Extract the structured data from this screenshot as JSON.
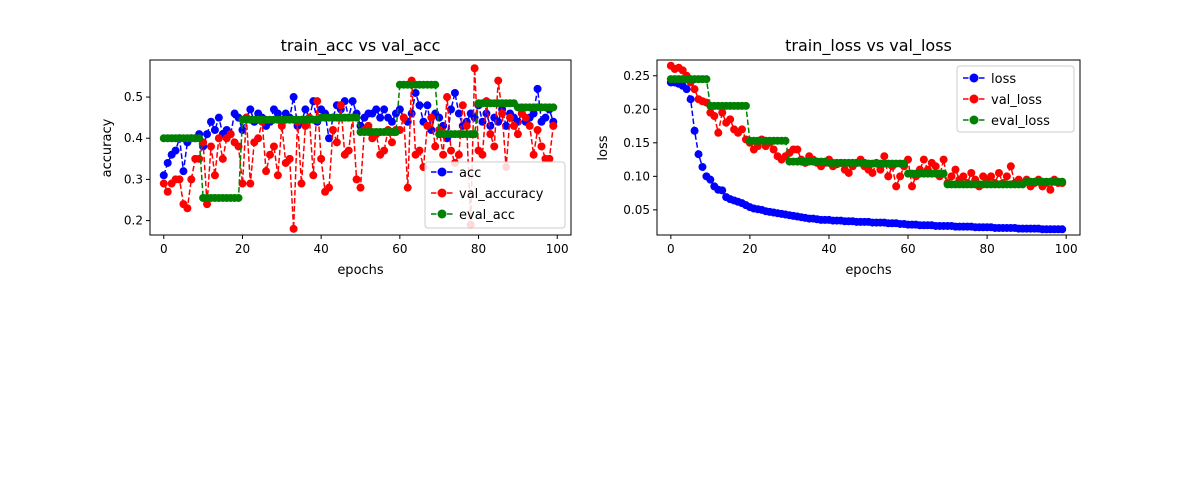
{
  "figure": {
    "background": "#ffffff"
  },
  "chart_data": [
    {
      "type": "line",
      "title": "train_acc vs val_acc",
      "xlabel": "epochs",
      "ylabel": "accuracy",
      "xlim": [
        -3.5,
        103.5
      ],
      "ylim": [
        0.165,
        0.59
      ],
      "xticks": [
        0,
        20,
        40,
        60,
        80,
        100
      ],
      "xtick_labels": [
        "0",
        "20",
        "40",
        "60",
        "80",
        "100"
      ],
      "yticks": [
        0.2,
        0.3,
        0.4,
        0.5
      ],
      "ytick_labels": [
        "0.2",
        "0.3",
        "0.4",
        "0.5"
      ],
      "grid": false,
      "legend_position": "lower-right",
      "series": [
        {
          "name": "acc",
          "color": "#0000ff",
          "x_start": 0,
          "values": [
            0.31,
            0.34,
            0.36,
            0.37,
            0.4,
            0.32,
            0.39,
            0.4,
            0.4,
            0.41,
            0.38,
            0.41,
            0.44,
            0.42,
            0.45,
            0.41,
            0.42,
            0.41,
            0.46,
            0.45,
            0.42,
            0.45,
            0.47,
            0.44,
            0.46,
            0.45,
            0.43,
            0.44,
            0.47,
            0.46,
            0.44,
            0.46,
            0.45,
            0.5,
            0.43,
            0.44,
            0.47,
            0.45,
            0.49,
            0.44,
            0.47,
            0.46,
            0.4,
            0.45,
            0.48,
            0.47,
            0.49,
            0.45,
            0.49,
            0.46,
            0.43,
            0.45,
            0.46,
            0.46,
            0.47,
            0.45,
            0.47,
            0.45,
            0.44,
            0.46,
            0.47,
            0.45,
            0.44,
            0.46,
            0.51,
            0.48,
            0.44,
            0.48,
            0.42,
            0.46,
            0.45,
            0.43,
            0.4,
            0.47,
            0.51,
            0.46,
            0.43,
            0.44,
            0.46,
            0.45,
            0.48,
            0.44,
            0.46,
            0.43,
            0.45,
            0.44,
            0.47,
            0.43,
            0.46,
            0.45,
            0.44,
            0.46,
            0.44,
            0.45,
            0.46,
            0.52,
            0.44,
            0.45,
            0.47,
            0.44
          ]
        },
        {
          "name": "val_accuracy",
          "color": "#ff0000",
          "x_start": 0,
          "values": [
            0.29,
            0.27,
            0.29,
            0.3,
            0.3,
            0.24,
            0.23,
            0.3,
            0.35,
            0.35,
            0.39,
            0.24,
            0.38,
            0.31,
            0.4,
            0.35,
            0.4,
            0.41,
            0.39,
            0.38,
            0.29,
            0.45,
            0.29,
            0.39,
            0.4,
            0.44,
            0.32,
            0.36,
            0.38,
            0.31,
            0.43,
            0.34,
            0.35,
            0.18,
            0.44,
            0.29,
            0.43,
            0.45,
            0.31,
            0.49,
            0.35,
            0.27,
            0.28,
            0.42,
            0.39,
            0.48,
            0.36,
            0.37,
            0.45,
            0.3,
            0.28,
            0.42,
            0.43,
            0.4,
            0.41,
            0.36,
            0.37,
            0.42,
            0.39,
            0.42,
            0.42,
            0.45,
            0.28,
            0.54,
            0.36,
            0.37,
            0.33,
            0.43,
            0.45,
            0.38,
            0.42,
            0.36,
            0.5,
            0.37,
            0.34,
            0.36,
            0.48,
            0.43,
            0.19,
            0.57,
            0.37,
            0.36,
            0.49,
            0.41,
            0.38,
            0.54,
            0.46,
            0.33,
            0.45,
            0.43,
            0.41,
            0.46,
            0.45,
            0.43,
            0.36,
            0.42,
            0.38,
            0.35,
            0.35,
            0.43
          ]
        },
        {
          "name": "eval_acc",
          "color": "#008000",
          "x_start": 0,
          "values": [
            0.4,
            0.4,
            0.4,
            0.4,
            0.4,
            0.4,
            0.4,
            0.4,
            0.4,
            0.4,
            0.255,
            0.255,
            0.255,
            0.255,
            0.255,
            0.255,
            0.255,
            0.255,
            0.255,
            0.255,
            0.445,
            0.445,
            0.445,
            0.445,
            0.445,
            0.445,
            0.445,
            0.445,
            0.445,
            0.445,
            0.445,
            0.445,
            0.445,
            0.445,
            0.445,
            0.445,
            0.445,
            0.445,
            0.445,
            0.445,
            0.45,
            0.45,
            0.45,
            0.45,
            0.45,
            0.45,
            0.45,
            0.45,
            0.45,
            0.45,
            0.415,
            0.415,
            0.415,
            0.415,
            0.415,
            0.415,
            0.415,
            0.415,
            0.415,
            0.415,
            0.53,
            0.53,
            0.53,
            0.53,
            0.53,
            0.53,
            0.53,
            0.53,
            0.53,
            0.53,
            0.41,
            0.41,
            0.41,
            0.41,
            0.41,
            0.41,
            0.41,
            0.41,
            0.41,
            0.41,
            0.485,
            0.485,
            0.485,
            0.485,
            0.485,
            0.485,
            0.485,
            0.485,
            0.485,
            0.485,
            0.475,
            0.475,
            0.475,
            0.475,
            0.475,
            0.475,
            0.475,
            0.475,
            0.475,
            0.475
          ]
        }
      ]
    },
    {
      "type": "line",
      "title": "train_loss vs val_loss",
      "xlabel": "epochs",
      "ylabel": "loss",
      "xlim": [
        -3.5,
        103.5
      ],
      "ylim": [
        0.0125,
        0.2735
      ],
      "xticks": [
        0,
        20,
        40,
        60,
        80,
        100
      ],
      "xtick_labels": [
        "0",
        "20",
        "40",
        "60",
        "80",
        "100"
      ],
      "yticks": [
        0.05,
        0.1,
        0.15,
        0.2,
        0.25
      ],
      "ytick_labels": [
        "0.05",
        "0.10",
        "0.15",
        "0.20",
        "0.25"
      ],
      "grid": false,
      "legend_position": "upper-right",
      "series": [
        {
          "name": "loss",
          "color": "#0000ff",
          "x_start": 0,
          "values": [
            0.24,
            0.24,
            0.238,
            0.235,
            0.23,
            0.215,
            0.168,
            0.133,
            0.114,
            0.1,
            0.095,
            0.085,
            0.08,
            0.079,
            0.069,
            0.066,
            0.064,
            0.062,
            0.06,
            0.057,
            0.054,
            0.052,
            0.051,
            0.05,
            0.048,
            0.047,
            0.046,
            0.045,
            0.044,
            0.043,
            0.042,
            0.041,
            0.04,
            0.039,
            0.038,
            0.037,
            0.037,
            0.036,
            0.035,
            0.035,
            0.035,
            0.034,
            0.034,
            0.034,
            0.033,
            0.033,
            0.033,
            0.032,
            0.032,
            0.032,
            0.032,
            0.031,
            0.031,
            0.031,
            0.031,
            0.03,
            0.03,
            0.03,
            0.029,
            0.029,
            0.028,
            0.028,
            0.028,
            0.027,
            0.027,
            0.027,
            0.027,
            0.026,
            0.026,
            0.026,
            0.026,
            0.026,
            0.025,
            0.025,
            0.025,
            0.025,
            0.025,
            0.024,
            0.024,
            0.024,
            0.024,
            0.024,
            0.023,
            0.023,
            0.023,
            0.023,
            0.023,
            0.023,
            0.022,
            0.022,
            0.022,
            0.022,
            0.022,
            0.022,
            0.021,
            0.021,
            0.021,
            0.021,
            0.021,
            0.021
          ]
        },
        {
          "name": "val_loss",
          "color": "#ff0000",
          "x_start": 0,
          "values": [
            0.265,
            0.26,
            0.262,
            0.258,
            0.25,
            0.24,
            0.23,
            0.215,
            0.212,
            0.21,
            0.195,
            0.19,
            0.165,
            0.195,
            0.18,
            0.185,
            0.17,
            0.165,
            0.17,
            0.155,
            0.15,
            0.14,
            0.145,
            0.155,
            0.145,
            0.15,
            0.14,
            0.13,
            0.125,
            0.13,
            0.135,
            0.14,
            0.14,
            0.125,
            0.12,
            0.13,
            0.125,
            0.12,
            0.115,
            0.12,
            0.125,
            0.115,
            0.118,
            0.12,
            0.11,
            0.105,
            0.115,
            0.12,
            0.125,
            0.115,
            0.11,
            0.105,
            0.12,
            0.11,
            0.13,
            0.1,
            0.115,
            0.085,
            0.1,
            0.115,
            0.125,
            0.085,
            0.1,
            0.11,
            0.125,
            0.11,
            0.12,
            0.115,
            0.1,
            0.125,
            0.09,
            0.1,
            0.11,
            0.095,
            0.1,
            0.09,
            0.105,
            0.095,
            0.085,
            0.1,
            0.095,
            0.1,
            0.09,
            0.105,
            0.09,
            0.1,
            0.115,
            0.09,
            0.095,
            0.09,
            0.095,
            0.085,
            0.09,
            0.095,
            0.085,
            0.09,
            0.08,
            0.095,
            0.09,
            0.09
          ]
        },
        {
          "name": "eval_loss",
          "color": "#008000",
          "x_start": 0,
          "values": [
            0.245,
            0.245,
            0.245,
            0.245,
            0.245,
            0.245,
            0.245,
            0.245,
            0.245,
            0.245,
            0.205,
            0.205,
            0.205,
            0.205,
            0.205,
            0.205,
            0.205,
            0.205,
            0.205,
            0.205,
            0.153,
            0.153,
            0.153,
            0.153,
            0.153,
            0.153,
            0.153,
            0.153,
            0.153,
            0.153,
            0.122,
            0.122,
            0.122,
            0.122,
            0.122,
            0.122,
            0.122,
            0.122,
            0.122,
            0.122,
            0.12,
            0.12,
            0.12,
            0.12,
            0.12,
            0.12,
            0.12,
            0.12,
            0.12,
            0.12,
            0.119,
            0.119,
            0.119,
            0.119,
            0.119,
            0.119,
            0.119,
            0.119,
            0.119,
            0.119,
            0.104,
            0.104,
            0.104,
            0.104,
            0.104,
            0.104,
            0.104,
            0.104,
            0.104,
            0.104,
            0.088,
            0.088,
            0.088,
            0.088,
            0.088,
            0.088,
            0.088,
            0.088,
            0.088,
            0.088,
            0.088,
            0.088,
            0.088,
            0.088,
            0.088,
            0.088,
            0.088,
            0.088,
            0.088,
            0.088,
            0.092,
            0.092,
            0.092,
            0.092,
            0.092,
            0.092,
            0.092,
            0.092,
            0.092,
            0.092
          ]
        }
      ]
    }
  ]
}
